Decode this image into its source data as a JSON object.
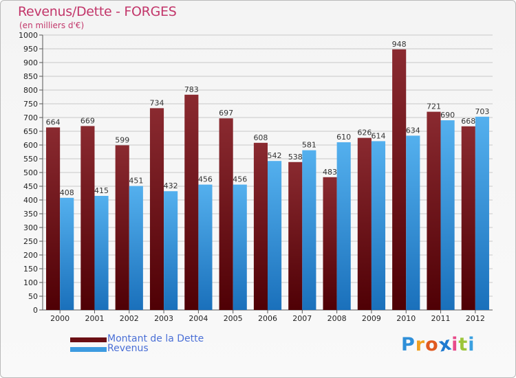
{
  "header": {
    "title": "Revenus/Dette - FORGES",
    "subtitle": "(en milliers d'€)"
  },
  "chart_data": {
    "type": "bar",
    "categories": [
      "2000",
      "2001",
      "2002",
      "2003",
      "2004",
      "2005",
      "2006",
      "2007",
      "2008",
      "2009",
      "2010",
      "2011",
      "2012"
    ],
    "series": [
      {
        "name": "Montant de la Dette",
        "color": "#6b0f14",
        "values": [
          664,
          669,
          599,
          734,
          783,
          697,
          608,
          538,
          483,
          626,
          948,
          721,
          668
        ]
      },
      {
        "name": "Revenus",
        "color": "#3d9be0",
        "values": [
          408,
          415,
          451,
          432,
          456,
          456,
          542,
          581,
          610,
          614,
          634,
          690,
          703
        ]
      }
    ],
    "title": "Revenus/Dette - FORGES",
    "xlabel": "",
    "ylabel": "",
    "ylim": [
      0,
      1000
    ],
    "ytick_step": 50,
    "grid": true,
    "legend_position": "bottom-left",
    "data_labels": true
  },
  "legend": {
    "items": [
      {
        "label": "Montant de la Dette",
        "color": "#6b0f14"
      },
      {
        "label": "Revenus",
        "color": "#3d9be0"
      }
    ]
  },
  "logo": {
    "text": "Proxiti",
    "letter_colors": [
      "#2f8fd8",
      "#f0a020",
      "#e05a20",
      "#1f7ad0",
      "#e84a8a",
      "#9cc53a",
      "#3aa0e0"
    ]
  }
}
